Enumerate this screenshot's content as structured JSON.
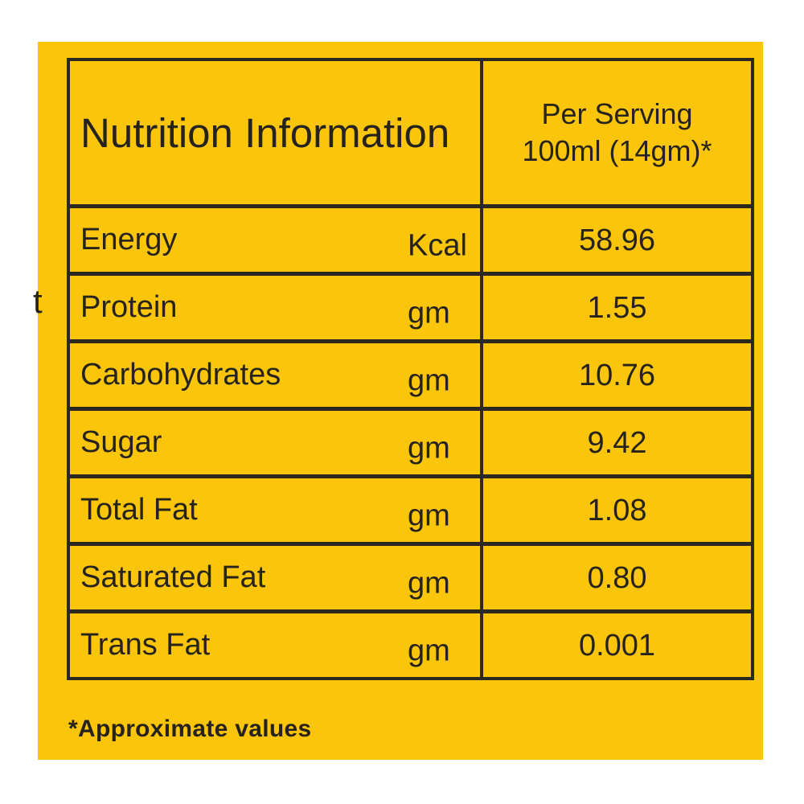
{
  "colors": {
    "page_background": "#ffffff",
    "label_background": "#fbc50b",
    "border": "#2b2822",
    "text": "#26221c"
  },
  "stray_clipped_text": "t",
  "table": {
    "header": {
      "title": "Nutrition Information",
      "serving_line1": "Per Serving",
      "serving_line2": "100ml (14gm)*"
    },
    "rows": [
      {
        "label": "Energy",
        "unit": "Kcal",
        "value": "58.96"
      },
      {
        "label": "Protein",
        "unit": "gm",
        "value": "1.55"
      },
      {
        "label": "Carbohydrates",
        "unit": "gm",
        "value": "10.76"
      },
      {
        "label": "Sugar",
        "unit": "gm",
        "value": "9.42"
      },
      {
        "label": "Total Fat",
        "unit": "gm",
        "value": "1.08"
      },
      {
        "label": "Saturated Fat",
        "unit": "gm",
        "value": "0.80"
      },
      {
        "label": "Trans Fat",
        "unit": "gm",
        "value": "0.001"
      }
    ],
    "footnote": "*Approximate values"
  }
}
